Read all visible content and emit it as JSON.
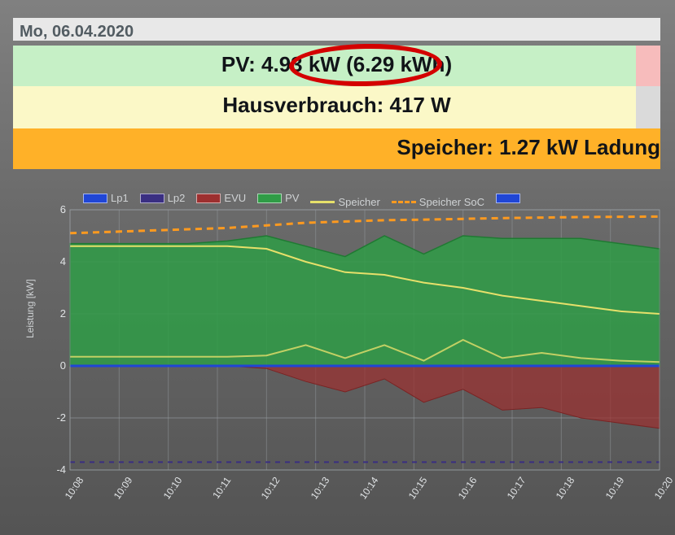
{
  "date_label": "Mo, 06.04.2020",
  "strips": {
    "pv": {
      "text": "PV: 4.93 kW (6.29 kWh)",
      "bg": "#c6f0c6"
    },
    "haus": {
      "text": "Hausverbrauch: 417 W",
      "bg": "#fbf8c7"
    },
    "spei": {
      "text": "Speicher: 1.27 kW Ladung",
      "bg": "#ffb128"
    }
  },
  "annotation_ellipse_color": "#d40000",
  "chart": {
    "type": "area-line-timeseries",
    "ylabel": "Leistung [kW]",
    "ylim": [
      -4,
      6
    ],
    "ytick_step": 2,
    "x_labels": [
      "10:08",
      "10:09",
      "10:10",
      "10:11",
      "10:12",
      "10:13",
      "10:14",
      "10:15",
      "10:16",
      "10:17",
      "10:18",
      "10:19",
      "10:20"
    ],
    "background": "transparent",
    "grid_color": "#9aa0a4",
    "grid_minor_color": "#7c8185",
    "axis_color": "#cfd2d4",
    "text_color": "#e0e3e5",
    "label_fontsize": 12,
    "tick_fontsize": 13,
    "legend": [
      {
        "label": "Lp1",
        "style": "swatch",
        "color": "#2046d6"
      },
      {
        "label": "Lp2",
        "style": "swatch",
        "color": "#3a2f82"
      },
      {
        "label": "EVU",
        "style": "swatch",
        "color": "#9d2f2f"
      },
      {
        "label": "PV",
        "style": "swatch",
        "color": "#2f9c46"
      },
      {
        "label": "Speicher",
        "style": "line",
        "color": "#e6e06a"
      },
      {
        "label": "Speicher SoC",
        "style": "dash",
        "color": "#ff9a1f"
      },
      {
        "label": "",
        "style": "swatch",
        "color": "#2046d6"
      }
    ],
    "series": {
      "pv_area": {
        "type": "area",
        "fill": "#2f9c46",
        "fill_opacity": 0.85,
        "stroke": "#1f7a32",
        "stroke_width": 1.5,
        "y": [
          4.7,
          4.7,
          4.7,
          4.7,
          4.8,
          5.0,
          4.6,
          4.2,
          5.0,
          4.3,
          5.0,
          4.9,
          4.9,
          4.9,
          4.7,
          4.5
        ]
      },
      "evu_area": {
        "type": "area",
        "fill": "#9d2f2f",
        "fill_opacity": 0.7,
        "stroke": "#7a2323",
        "stroke_width": 1,
        "y": [
          0,
          0,
          0,
          0,
          0,
          -0.1,
          -0.6,
          -1.0,
          -0.5,
          -1.4,
          -0.9,
          -1.7,
          -1.6,
          -2.0,
          -2.2,
          -2.4
        ]
      },
      "speicher_line": {
        "type": "line",
        "color": "#e6e06a",
        "width": 2,
        "y": [
          4.6,
          4.6,
          4.6,
          4.6,
          4.6,
          4.5,
          4.0,
          3.6,
          3.5,
          3.2,
          3.0,
          2.7,
          2.5,
          2.3,
          2.1,
          2.0
        ]
      },
      "speicher_low_line": {
        "type": "line",
        "color": "#e6e06a",
        "width": 2,
        "opacity": 0.8,
        "y": [
          0.35,
          0.35,
          0.35,
          0.35,
          0.35,
          0.4,
          0.8,
          0.3,
          0.8,
          0.2,
          1.0,
          0.3,
          0.5,
          0.3,
          0.2,
          0.15
        ]
      },
      "soc_dash": {
        "type": "line",
        "color": "#ff9a1f",
        "width": 3,
        "dash": "8 6",
        "y": [
          5.1,
          5.15,
          5.2,
          5.25,
          5.3,
          5.4,
          5.5,
          5.55,
          5.6,
          5.62,
          5.65,
          5.68,
          5.7,
          5.72,
          5.73,
          5.74
        ]
      },
      "lp1_line": {
        "type": "line",
        "color": "#2046d6",
        "width": 3,
        "y": [
          0,
          0,
          0,
          0,
          0,
          0,
          0,
          0,
          0,
          0,
          0,
          0,
          0,
          0,
          0,
          0
        ]
      },
      "lp2_dash": {
        "type": "line",
        "color": "#3a2f82",
        "width": 2,
        "dash": "6 6",
        "y": [
          -3.7,
          -3.7,
          -3.7,
          -3.7,
          -3.7,
          -3.7,
          -3.7,
          -3.7,
          -3.7,
          -3.7,
          -3.7,
          -3.7,
          -3.7,
          -3.7,
          -3.7,
          -3.7
        ]
      }
    }
  }
}
